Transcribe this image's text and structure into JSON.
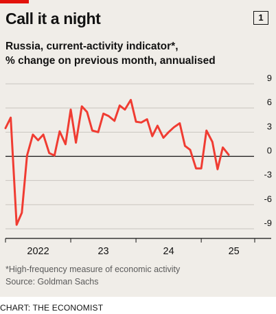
{
  "title": "Call it a night",
  "badge": "1",
  "subtitle_line1": "Russia, current-activity indicator*,",
  "subtitle_line2": "% change on previous month, annualised",
  "footnote": "*High-frequency measure of economic activity",
  "source": "Source: Goldman Sachs",
  "credit": "CHART: THE ECONOMIST",
  "colors": {
    "background": "#f0ede8",
    "line": "#f03c32",
    "grid": "#c9c5bf",
    "zero_line": "#121212",
    "brand_red": "#e3120b",
    "text": "#121212",
    "muted_text": "#5a5a5a"
  },
  "chart_data": {
    "type": "line",
    "title": "Call it a night",
    "subtitle": "Russia, current-activity indicator*, % change on previous month, annualised",
    "ylim": [
      -9,
      9
    ],
    "y_ticks": [
      9,
      6,
      3,
      0,
      -3,
      -6,
      -9
    ],
    "y_tick_labels": [
      "9",
      "6",
      "3",
      "0",
      "-3",
      "-6",
      "-9"
    ],
    "y_axis_position": "right",
    "grid": true,
    "xlim": [
      2022.0,
      2025.83
    ],
    "x_ticks": [
      2022,
      2023,
      2024,
      2025
    ],
    "x_tick_labels": [
      "2022",
      "23",
      "24",
      "25"
    ],
    "series": [
      {
        "x": [
          2022.0,
          2022.08,
          2022.17,
          2022.25,
          2022.33,
          2022.42,
          2022.5,
          2022.58,
          2022.67,
          2022.75,
          2022.83,
          2022.92,
          2023.0,
          2023.08,
          2023.17,
          2023.25,
          2023.33,
          2023.42,
          2023.5,
          2023.58,
          2023.67,
          2023.75,
          2023.83,
          2023.92,
          2024.0,
          2024.08,
          2024.17,
          2024.25,
          2024.33,
          2024.42,
          2024.5,
          2024.58,
          2024.67,
          2024.75,
          2024.83,
          2024.92,
          2025.0,
          2025.08,
          2025.17,
          2025.25,
          2025.33,
          2025.42
        ],
        "values": [
          3.5,
          4.8,
          -8.5,
          -7.0,
          0.1,
          2.7,
          2.0,
          2.7,
          0.4,
          0.1,
          3.1,
          1.5,
          5.8,
          1.7,
          6.2,
          5.5,
          3.2,
          3.0,
          5.3,
          5.0,
          4.4,
          6.3,
          5.8,
          7.0,
          4.3,
          4.2,
          4.6,
          2.5,
          3.8,
          2.3,
          3.0,
          3.6,
          4.1,
          1.3,
          0.8,
          -1.5,
          -1.5,
          3.2,
          1.8,
          -1.6,
          1.1,
          0.2
        ]
      }
    ]
  }
}
